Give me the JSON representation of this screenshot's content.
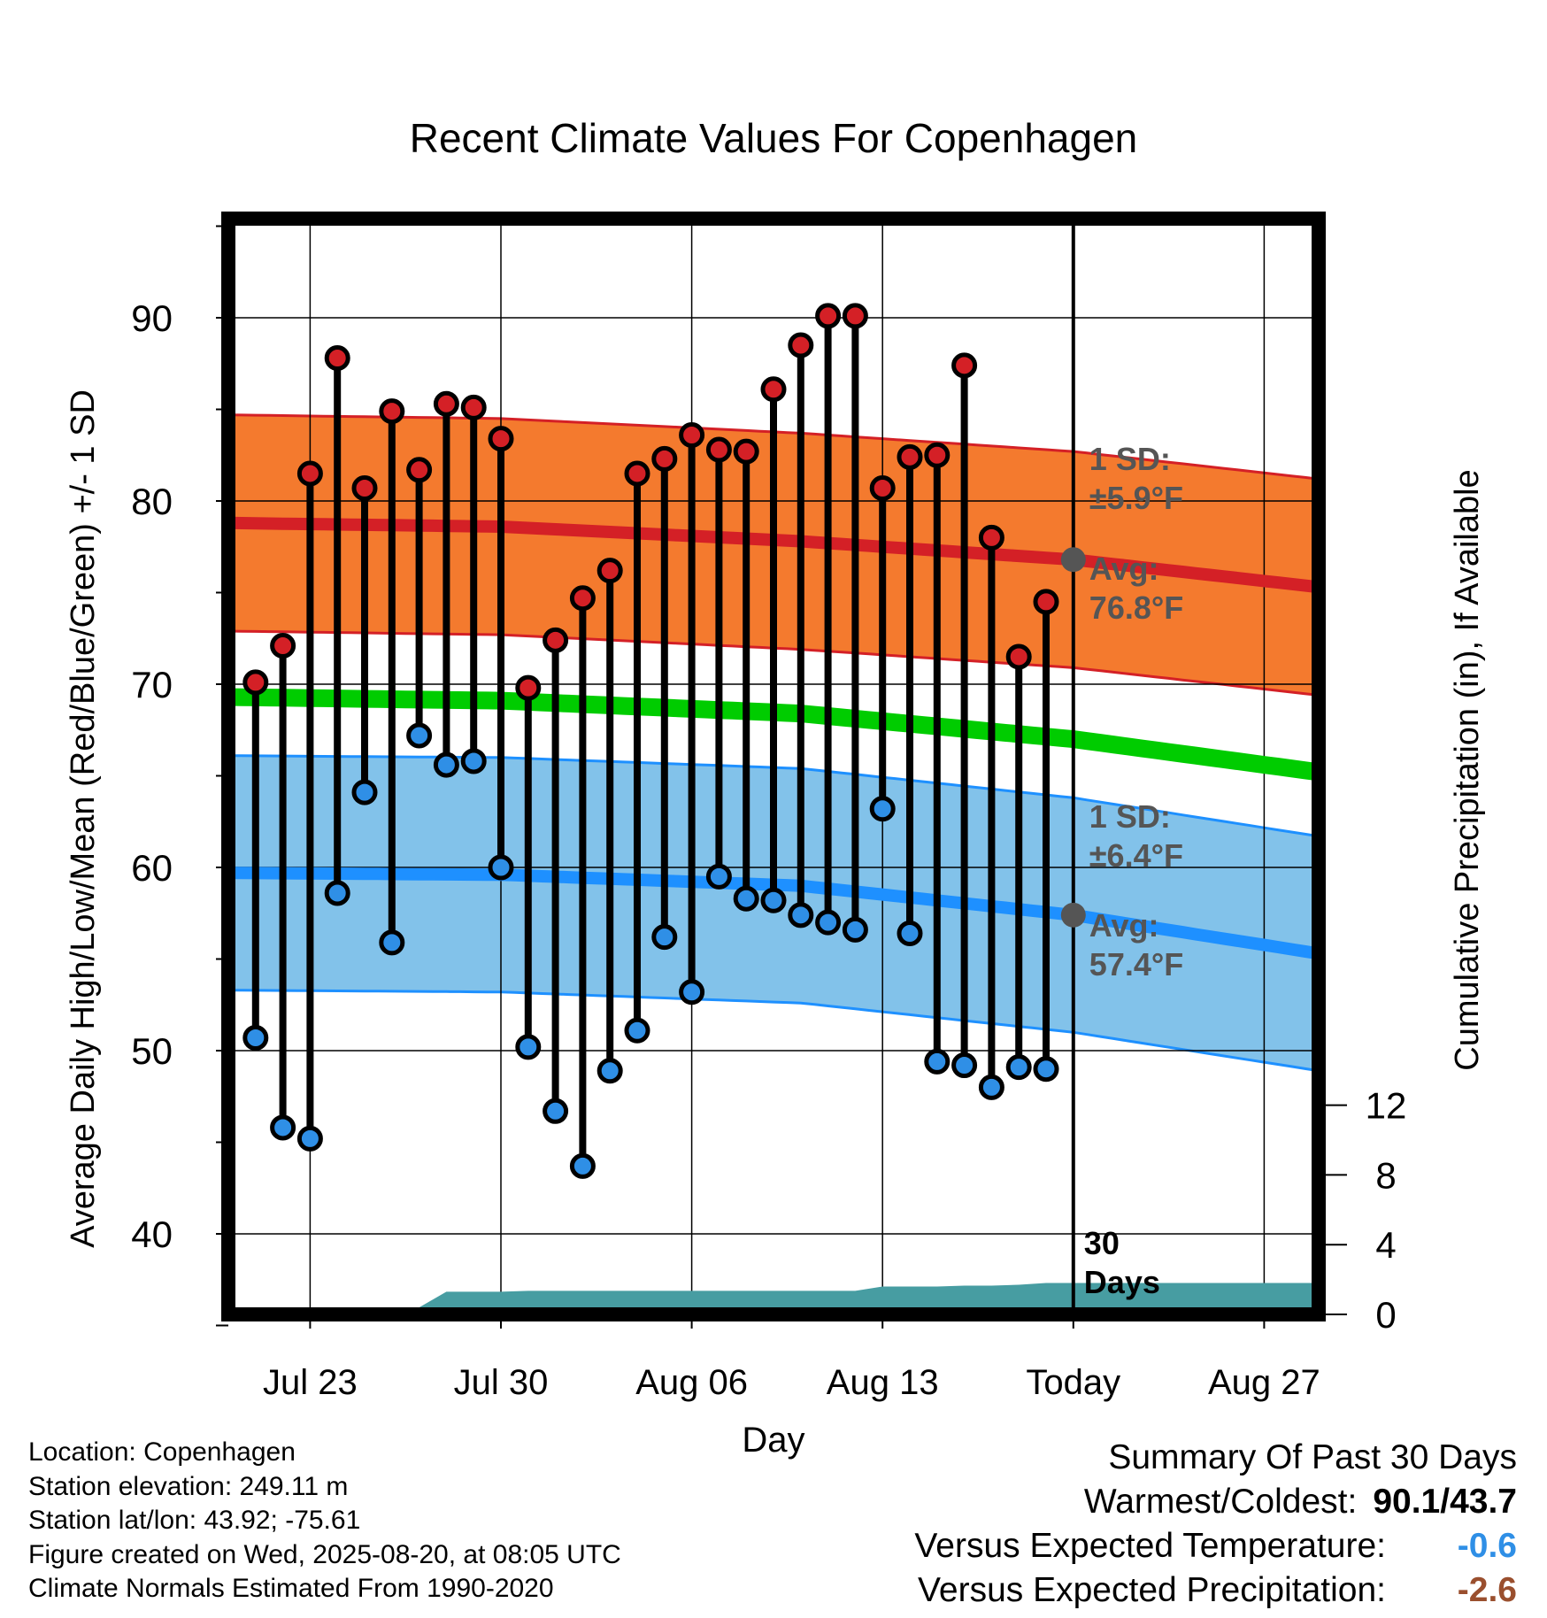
{
  "chart_data": {
    "type": "line",
    "title": "Recent Climate Values For Copenhagen",
    "xlabel": "Day",
    "ylabel": "Average Daily High/Low/Mean (Red/Blue/Green) +/- 1 SD",
    "y2label": "Cumulative Precipitation (in), If Available",
    "ylim": [
      35,
      95
    ],
    "y_ticks": [
      40,
      50,
      60,
      70,
      80,
      90
    ],
    "y2lim": [
      0,
      20.8
    ],
    "y2_ticks": [
      0,
      4,
      8,
      12
    ],
    "x_ticks": [
      "Jul 23",
      "Jul 30",
      "Aug 06",
      "Aug 13",
      "Today",
      "Aug 27"
    ],
    "x_start": "Jul 20",
    "x_end": "Aug 29",
    "grid": true,
    "days": [
      "Jul 21",
      "Jul 22",
      "Jul 23",
      "Jul 24",
      "Jul 25",
      "Jul 26",
      "Jul 27",
      "Jul 28",
      "Jul 29",
      "Jul 30",
      "Jul 31",
      "Aug 01",
      "Aug 02",
      "Aug 03",
      "Aug 04",
      "Aug 05",
      "Aug 06",
      "Aug 07",
      "Aug 08",
      "Aug 09",
      "Aug 10",
      "Aug 11",
      "Aug 12",
      "Aug 13",
      "Aug 14",
      "Aug 15",
      "Aug 16",
      "Aug 17",
      "Aug 18",
      "Aug 19"
    ],
    "highs": [
      70.1,
      72.1,
      81.5,
      87.8,
      80.7,
      84.9,
      81.7,
      85.3,
      85.1,
      83.4,
      69.8,
      72.4,
      74.7,
      76.2,
      81.5,
      82.3,
      83.6,
      82.8,
      82.7,
      86.1,
      88.5,
      90.1,
      90.1,
      80.7,
      82.4,
      82.5,
      87.4,
      78.0,
      71.5,
      74.5
    ],
    "lows": [
      50.7,
      45.8,
      45.2,
      58.6,
      64.1,
      55.9,
      67.2,
      65.6,
      65.8,
      60.0,
      50.2,
      46.7,
      43.7,
      48.9,
      51.1,
      56.2,
      53.2,
      59.5,
      58.3,
      58.2,
      57.4,
      57.0,
      56.6,
      63.2,
      56.4,
      49.4,
      49.2,
      48.0,
      49.1,
      49.0
    ],
    "normal_high": [
      78.8,
      78.6,
      77.8,
      76.8,
      75.3
    ],
    "normal_high_sd": 5.9,
    "normal_low": [
      59.7,
      59.6,
      59.0,
      57.4,
      55.3
    ],
    "normal_low_sd": 6.4,
    "normal_mean": [
      69.3,
      69.1,
      68.4,
      67.0,
      65.2
    ],
    "normal_days": [
      "Jul 20",
      "Jul 30",
      "Aug 10",
      "Today",
      "Aug 29"
    ],
    "precip_cumulative": [
      0,
      0,
      0,
      0,
      0.0,
      0.4,
      0.4,
      1.3,
      1.3,
      1.3,
      1.35,
      1.35,
      1.35,
      1.35,
      1.35,
      1.35,
      1.35,
      1.35,
      1.35,
      1.35,
      1.35,
      1.35,
      1.35,
      1.6,
      1.6,
      1.6,
      1.65,
      1.65,
      1.7,
      1.8
    ],
    "annotations": {
      "high_sd_line1": "1 SD:",
      "high_sd_line2": "±5.9°F",
      "high_avg_line1": "Avg:",
      "high_avg_line2": "76.8°F",
      "low_sd_line1": "1 SD:",
      "low_sd_line2": "±6.4°F",
      "low_avg_line1": "Avg:",
      "low_avg_line2": "57.4°F",
      "days_line1": "30",
      "days_line2": "Days"
    },
    "colors": {
      "high_band": "#F47A2E",
      "high_line": "#D42026",
      "low_band": "#82C2EA",
      "low_line": "#1E90FF",
      "mean_line": "#00CC00",
      "precip": "#479DA2",
      "high_point": "#D42026",
      "low_point": "#2F8FE6",
      "annotation": "#555555"
    }
  },
  "footer": {
    "location": "Location: Copenhagen",
    "elevation": "Station elevation: 249.11 m",
    "latlon": "Station lat/lon: 43.92; -75.61",
    "created": "Figure created on Wed, 2025-08-20, at 08:05 UTC",
    "normals": "Climate Normals Estimated From 1990-2020"
  },
  "summary": {
    "title": "Summary Of Past 30 Days",
    "warm_cold_label": "Warmest/Coldest:",
    "warm_cold_value": "90.1/43.7",
    "temp_label": "Versus Expected Temperature:",
    "temp_value": "-0.6",
    "temp_color": "#2F8FE6",
    "precip_label": "Versus Expected Precipitation:",
    "precip_value": "-2.6",
    "precip_color": "#9A4F2E"
  }
}
